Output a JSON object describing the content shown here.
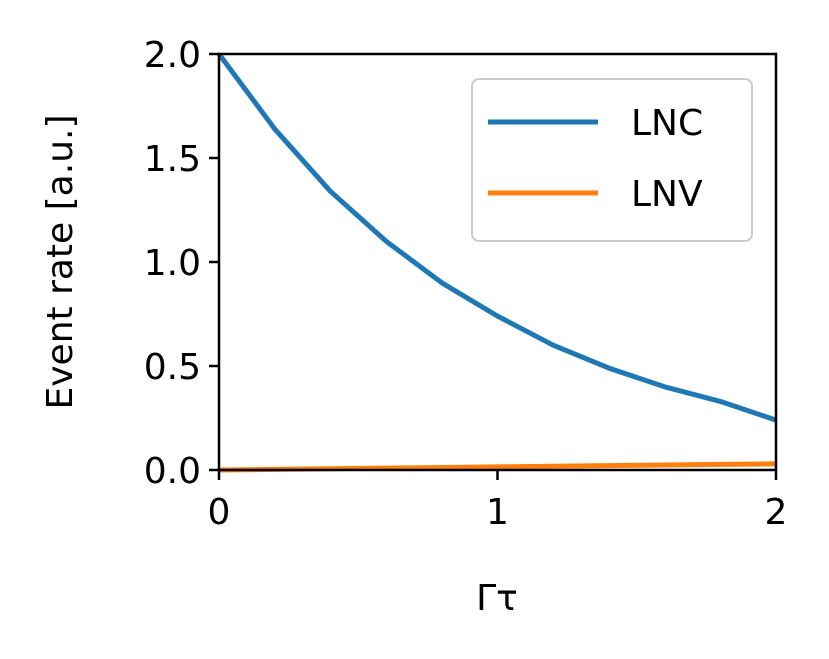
{
  "chart_data": {
    "type": "line",
    "title": "",
    "xlabel": "Γτ",
    "ylabel": "Event rate [a.u.]",
    "xlim": [
      0,
      2
    ],
    "ylim": [
      0,
      2
    ],
    "x_ticks": [
      "0",
      "1",
      "2"
    ],
    "y_ticks": [
      "0.0",
      "0.5",
      "1.0",
      "1.5",
      "2.0"
    ],
    "grid": false,
    "legend_position": "top-right",
    "x": [
      0,
      0.2,
      0.4,
      0.6,
      0.8,
      1.0,
      1.2,
      1.4,
      1.6,
      1.8,
      2.0
    ],
    "series": [
      {
        "name": "LNC",
        "color": "#1f77b4",
        "values": [
          2.0,
          1.64,
          1.34,
          1.1,
          0.9,
          0.74,
          0.6,
          0.49,
          0.4,
          0.33,
          0.24
        ]
      },
      {
        "name": "LNV",
        "color": "#ff7f0e",
        "values": [
          0.0,
          0.003,
          0.006,
          0.009,
          0.012,
          0.015,
          0.018,
          0.021,
          0.024,
          0.027,
          0.03
        ]
      }
    ]
  }
}
